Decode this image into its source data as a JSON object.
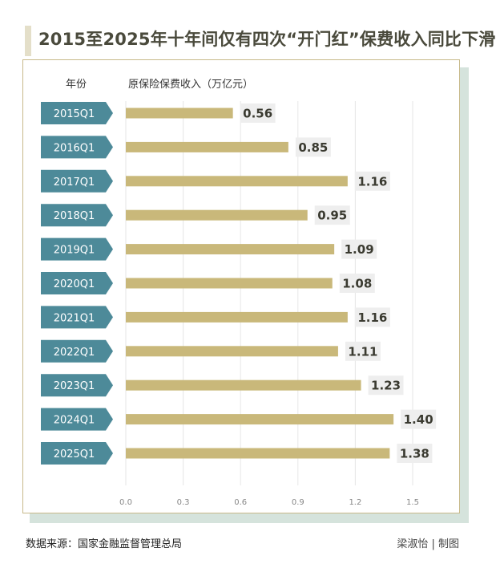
{
  "title": "2015至2025年十年间仅有四次“开门红”保费收入同比下滑",
  "column_headers": {
    "year": "年份",
    "value": "原保险保费收入（万亿元）"
  },
  "colors": {
    "bar": "#c9b87a",
    "label_tag": "#4d8a99",
    "value_box": "#eeeeee",
    "axis_text": "#888888",
    "grid": "#e6e6e6"
  },
  "footer": {
    "source": "数据来源：国家金融监督管理总局",
    "credit": "梁淑怡 | 制图"
  },
  "chart_data": {
    "type": "bar",
    "orientation": "horizontal",
    "categories": [
      "2015Q1",
      "2016Q1",
      "2017Q1",
      "2018Q1",
      "2019Q1",
      "2020Q1",
      "2021Q1",
      "2022Q1",
      "2023Q1",
      "2024Q1",
      "2025Q1"
    ],
    "values": [
      0.56,
      0.85,
      1.16,
      0.95,
      1.09,
      1.08,
      1.16,
      1.11,
      1.23,
      1.4,
      1.38
    ],
    "value_labels": [
      "0.56",
      "0.85",
      "1.16",
      "0.95",
      "1.09",
      "1.08",
      "1.16",
      "1.11",
      "1.23",
      "1.40",
      "1.38"
    ],
    "xlim": [
      0,
      1.5
    ],
    "xticks": [
      "0.0",
      "0.3",
      "0.6",
      "0.9",
      "1.2",
      "1.5"
    ],
    "grid": true
  }
}
